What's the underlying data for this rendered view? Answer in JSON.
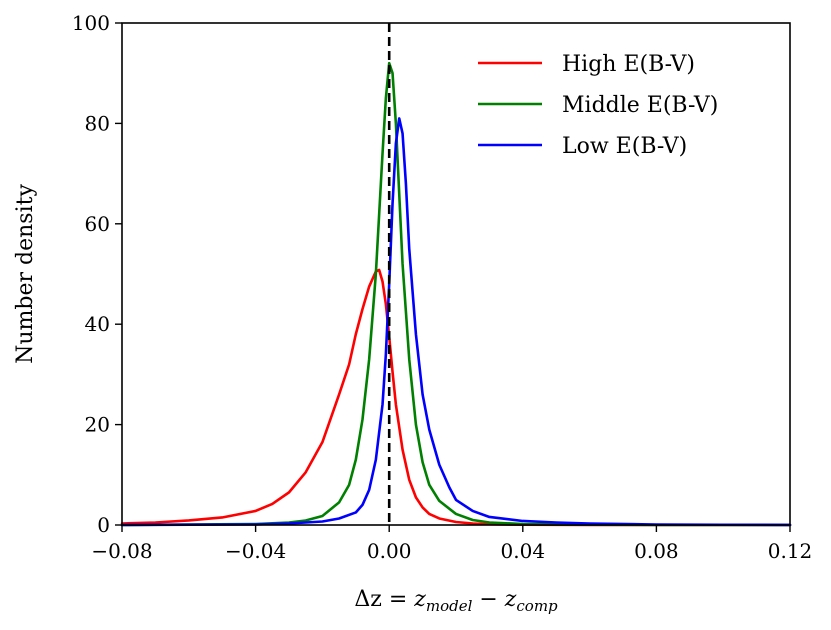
{
  "chart_data": {
    "type": "line",
    "title": "",
    "xlabel": "Δz = z_model − z_comp",
    "xlabel_parts": {
      "prefix": "Δz = ",
      "z1": "z",
      "sub1": "model",
      "minus": " − ",
      "z2": "z",
      "sub2": "comp"
    },
    "ylabel": "Number density",
    "xlim": [
      -0.08,
      0.12
    ],
    "ylim": [
      0,
      100
    ],
    "xticks": [
      -0.08,
      -0.04,
      0.0,
      0.04,
      0.08,
      0.12
    ],
    "xtick_labels": [
      "−0.08",
      "−0.04",
      "0.00",
      "0.04",
      "0.08",
      "0.12"
    ],
    "yticks": [
      0,
      20,
      40,
      60,
      80,
      100
    ],
    "ytick_labels": [
      "0",
      "20",
      "40",
      "60",
      "80",
      "100"
    ],
    "grid": false,
    "legend_position": "top-right",
    "reference_line": {
      "x": 0.0,
      "style": "dashed",
      "color": "#000000"
    },
    "series": [
      {
        "name": "High E(B-V)",
        "color": "#ff0000",
        "x": [
          -0.08,
          -0.07,
          -0.06,
          -0.05,
          -0.04,
          -0.035,
          -0.03,
          -0.025,
          -0.02,
          -0.015,
          -0.012,
          -0.01,
          -0.008,
          -0.006,
          -0.004,
          -0.003,
          -0.002,
          -0.001,
          0.0,
          0.001,
          0.002,
          0.004,
          0.006,
          0.008,
          0.01,
          0.012,
          0.015,
          0.02,
          0.025,
          0.03,
          0.04,
          0.06,
          0.08,
          0.12
        ],
        "y": [
          0.3,
          0.5,
          0.9,
          1.5,
          2.8,
          4.2,
          6.5,
          10.5,
          16.5,
          26,
          32,
          38,
          43,
          47.5,
          50.5,
          50.8,
          48.5,
          44,
          37.5,
          30.5,
          24,
          15,
          9,
          5.5,
          3.5,
          2.2,
          1.3,
          0.6,
          0.3,
          0.15,
          0.05,
          0.02,
          0.01,
          0.0
        ]
      },
      {
        "name": "Middle E(B-V)",
        "color": "#008000",
        "x": [
          -0.08,
          -0.04,
          -0.03,
          -0.025,
          -0.02,
          -0.015,
          -0.012,
          -0.01,
          -0.008,
          -0.006,
          -0.004,
          -0.003,
          -0.002,
          -0.001,
          0.0,
          0.001,
          0.002,
          0.003,
          0.004,
          0.006,
          0.008,
          0.01,
          0.012,
          0.015,
          0.02,
          0.025,
          0.03,
          0.04,
          0.06,
          0.08,
          0.12
        ],
        "y": [
          0.0,
          0.2,
          0.5,
          0.9,
          1.8,
          4.5,
          8,
          13,
          21,
          33,
          50,
          62,
          74,
          85,
          92,
          90,
          80,
          66,
          52,
          33,
          20,
          12.5,
          8,
          4.8,
          2.2,
          1.0,
          0.5,
          0.2,
          0.05,
          0.02,
          0.0
        ]
      },
      {
        "name": "Low E(B-V)",
        "color": "#0000ff",
        "x": [
          -0.08,
          -0.04,
          -0.03,
          -0.02,
          -0.015,
          -0.01,
          -0.008,
          -0.006,
          -0.004,
          -0.002,
          -0.001,
          0.0,
          0.001,
          0.002,
          0.003,
          0.004,
          0.005,
          0.006,
          0.008,
          0.01,
          0.012,
          0.015,
          0.018,
          0.02,
          0.025,
          0.03,
          0.04,
          0.05,
          0.06,
          0.08,
          0.1,
          0.12
        ],
        "y": [
          0.0,
          0.1,
          0.3,
          0.7,
          1.3,
          2.5,
          4,
          7,
          13,
          24,
          34,
          48,
          64,
          76,
          81,
          78,
          68,
          55,
          38,
          26,
          19,
          12,
          7.5,
          5,
          2.8,
          1.6,
          0.8,
          0.5,
          0.3,
          0.1,
          0.05,
          0.02
        ]
      }
    ]
  }
}
